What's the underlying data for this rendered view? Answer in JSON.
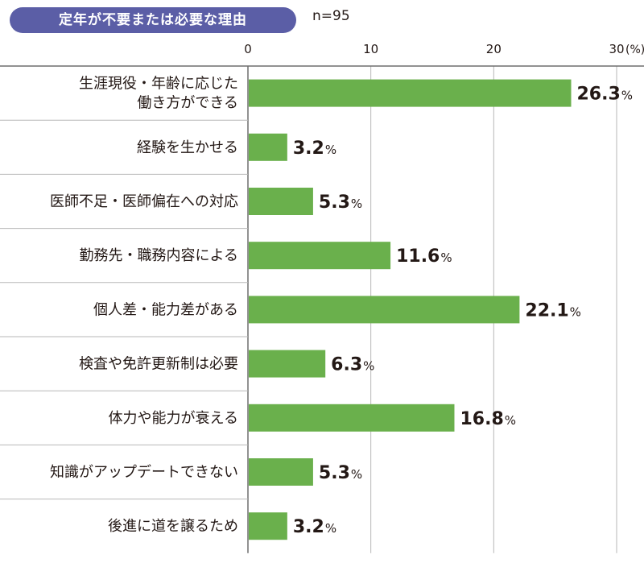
{
  "header": {
    "title": "定年が不要または必要な理由",
    "sample_size": "n=95"
  },
  "chart_data": {
    "type": "bar",
    "orientation": "horizontal",
    "categories": [
      "生涯現役・年齢に応じた\n働き方ができる",
      "経験を生かせる",
      "医師不足・医師偏在への対応",
      "勤務先・職務内容による",
      "個人差・能力差がある",
      "検査や免許更新制は必要",
      "体力や能力が衰える",
      "知識がアップデートできない",
      "後進に道を譲るため"
    ],
    "values": [
      26.3,
      3.2,
      5.3,
      11.6,
      22.1,
      6.3,
      16.8,
      5.3,
      3.2
    ],
    "value_labels": [
      "26.3",
      "3.2",
      "5.3",
      "11.6",
      "22.1",
      "6.3",
      "16.8",
      "5.3",
      "3.2"
    ],
    "value_unit": "%",
    "x_ticks": [
      "0",
      "10",
      "20",
      "30"
    ],
    "x_unit": "(%)",
    "xlim": [
      0,
      30
    ],
    "bar_color": "#6ab04c",
    "grid": true
  }
}
